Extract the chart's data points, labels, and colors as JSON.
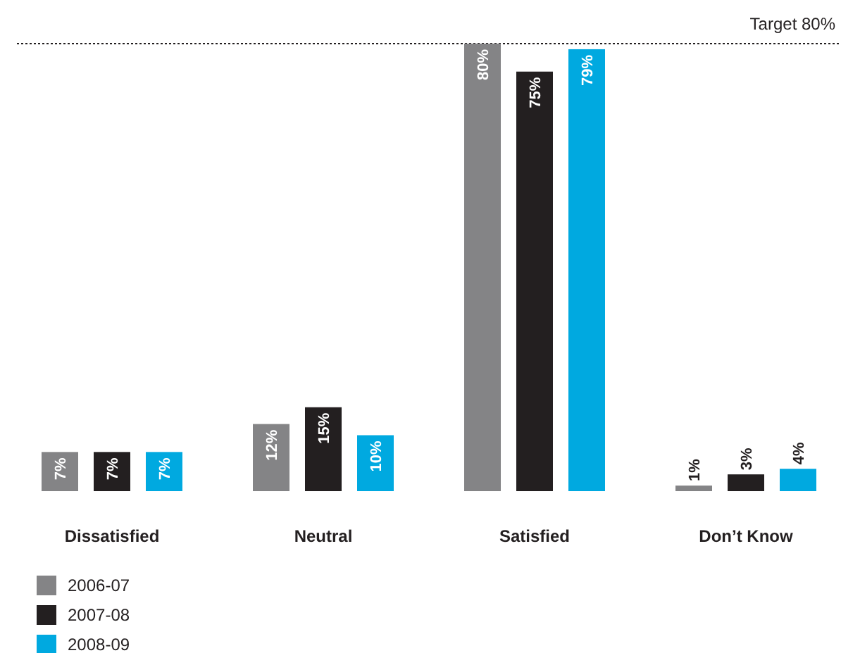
{
  "chart_data": {
    "type": "bar",
    "categories": [
      "Dissatisfied",
      "Neutral",
      "Satisfied",
      "Don’t Know"
    ],
    "series": [
      {
        "name": "2006-07",
        "color": "#848486",
        "values": [
          7,
          12,
          80,
          1
        ],
        "value_labels": [
          "7%",
          "12%",
          "80%",
          "1%"
        ]
      },
      {
        "name": "2007-08",
        "color": "#231f20",
        "values": [
          7,
          15,
          75,
          3
        ],
        "value_labels": [
          "7%",
          "15%",
          "75%",
          "3%"
        ]
      },
      {
        "name": "2008-09",
        "color": "#00a9e0",
        "values": [
          7,
          10,
          79,
          4
        ],
        "value_labels": [
          "7%",
          "10%",
          "79%",
          "4%"
        ]
      }
    ],
    "ylim": [
      0,
      80
    ],
    "tick_labels": "x",
    "legend": "bottom left",
    "ref_lines": [
      {
        "axis": "y",
        "value": 80,
        "label": "Target 80%",
        "color": "#231f20",
        "line_style": "dotted"
      }
    ]
  }
}
